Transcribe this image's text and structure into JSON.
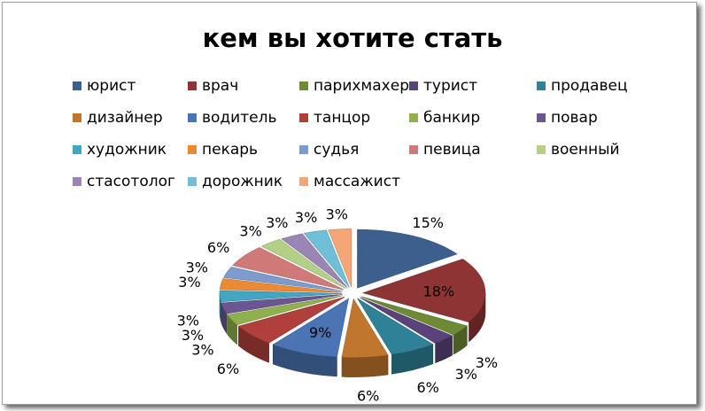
{
  "chart_data": {
    "type": "pie",
    "title": "кем вы хотите стать",
    "legend_position": "top",
    "slices": [
      {
        "label": "юрист",
        "value": 15,
        "value_label": "15%",
        "color": "#3d5f8e"
      },
      {
        "label": "врач",
        "value": 18,
        "value_label": "18%",
        "color": "#8e3434"
      },
      {
        "label": "парихмахер",
        "value": 3,
        "value_label": "3%",
        "color": "#6f8a34"
      },
      {
        "label": "турист",
        "value": 3,
        "value_label": "3%",
        "color": "#5a437a"
      },
      {
        "label": "продавец",
        "value": 6,
        "value_label": "6%",
        "color": "#2e8197"
      },
      {
        "label": "дизайнер",
        "value": 6,
        "value_label": "6%",
        "color": "#c0762c"
      },
      {
        "label": "водитель",
        "value": 9,
        "value_label": "9%",
        "color": "#4a74b4"
      },
      {
        "label": "танцор",
        "value": 6,
        "value_label": "6%",
        "color": "#b13f3c"
      },
      {
        "label": "банкир",
        "value": 3,
        "value_label": "3%",
        "color": "#8fb04c"
      },
      {
        "label": "повар",
        "value": 3,
        "value_label": "3%",
        "color": "#6c5691"
      },
      {
        "label": "художник",
        "value": 3,
        "value_label": "3%",
        "color": "#44a5c0"
      },
      {
        "label": "пекарь",
        "value": 3,
        "value_label": "3%",
        "color": "#ea8a35"
      },
      {
        "label": "судья",
        "value": 3,
        "value_label": "3%",
        "color": "#7d9bcc"
      },
      {
        "label": "певица",
        "value": 6,
        "value_label": "6%",
        "color": "#cf7a78"
      },
      {
        "label": "военный",
        "value": 3,
        "value_label": "3%",
        "color": "#b4cf86"
      },
      {
        "label": "стасотолог",
        "value": 3,
        "value_label": "3%",
        "color": "#9a86b4"
      },
      {
        "label": "дорожник",
        "value": 3,
        "value_label": "3%",
        "color": "#6fc0d6"
      },
      {
        "label": "массажист",
        "value": 3,
        "value_label": "3%",
        "color": "#f4a676"
      }
    ]
  }
}
